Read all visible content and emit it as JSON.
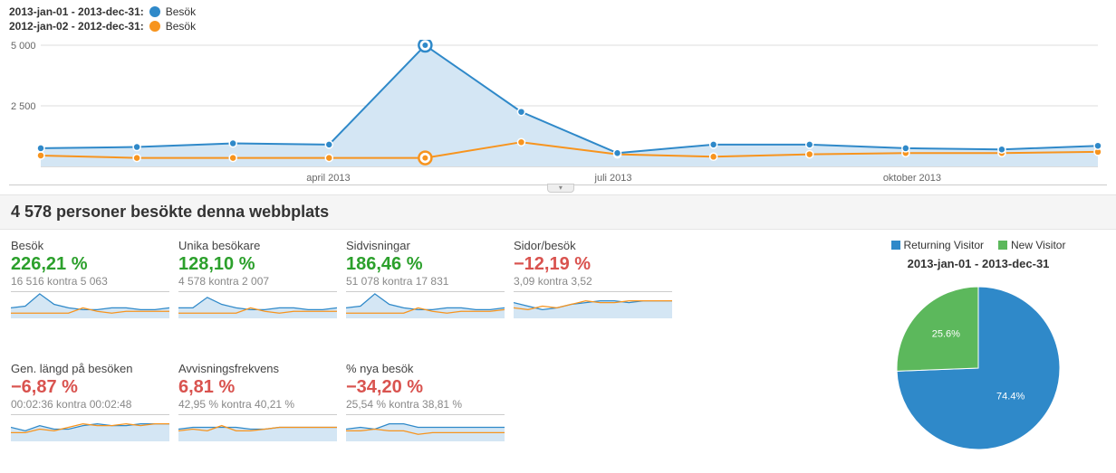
{
  "colors": {
    "series_a": "#2f89c9",
    "series_b": "#f7941e",
    "series_a_fill": "#d4e6f4",
    "series_b_fill": "#fdead1",
    "grid": "#dddddd",
    "axis_text": "#666666",
    "positive": "#2ca02c",
    "negative": "#d9534f",
    "pie_returning": "#2f89c9",
    "pie_new": "#5cb85c"
  },
  "legend": [
    {
      "date_range": "2013-jan-01 - 2013-dec-31:",
      "label": "Besök",
      "color": "#2f89c9"
    },
    {
      "date_range": "2012-jan-02 - 2012-dec-31:",
      "label": "Besök",
      "color": "#f7941e"
    }
  ],
  "main_chart": {
    "type": "line",
    "ylim": [
      0,
      5000
    ],
    "yticks": [
      2500,
      5000
    ],
    "ytick_labels": [
      "2 500",
      "5 000"
    ],
    "xtick_positions": [
      3,
      6,
      9
    ],
    "xtick_labels": [
      "april 2013",
      "juli 2013",
      "oktober 2013"
    ],
    "highlight_index": 4,
    "series_a": [
      750,
      800,
      950,
      900,
      5000,
      2250,
      550,
      900,
      900,
      750,
      700,
      850
    ],
    "series_b": [
      450,
      350,
      350,
      350,
      350,
      1000,
      500,
      400,
      500,
      550,
      550,
      600
    ]
  },
  "summary_title": "4 578 personer besökte denna webbplats",
  "metrics": [
    {
      "label": "Besök",
      "pct": "226,21 %",
      "sign": "pos",
      "sub": "16 516 kontra 5 063",
      "spark_a": [
        6,
        7,
        14,
        8,
        6,
        5,
        5,
        6,
        6,
        5,
        5,
        6
      ],
      "spark_b": [
        3,
        3,
        3,
        3,
        3,
        6,
        4,
        3,
        4,
        4,
        4,
        4
      ]
    },
    {
      "label": "Unika besökare",
      "pct": "128,10 %",
      "sign": "pos",
      "sub": "4 578 kontra 2 007",
      "spark_a": [
        6,
        6,
        12,
        8,
        6,
        5,
        5,
        6,
        6,
        5,
        5,
        6
      ],
      "spark_b": [
        3,
        3,
        3,
        3,
        3,
        6,
        4,
        3,
        4,
        4,
        4,
        4
      ]
    },
    {
      "label": "Sidvisningar",
      "pct": "186,46 %",
      "sign": "pos",
      "sub": "51 078 kontra 17 831",
      "spark_a": [
        6,
        7,
        14,
        8,
        6,
        5,
        5,
        6,
        6,
        5,
        5,
        6
      ],
      "spark_b": [
        3,
        3,
        3,
        3,
        3,
        6,
        4,
        3,
        4,
        4,
        4,
        5
      ]
    },
    {
      "label": "Sidor/besök",
      "pct": "−12,19 %",
      "sign": "neg",
      "sub": "3,09 kontra 3,52",
      "spark_a": [
        9,
        7,
        5,
        6,
        8,
        9,
        10,
        10,
        9,
        10,
        10,
        10
      ],
      "spark_b": [
        6,
        5,
        7,
        6,
        8,
        10,
        9,
        9,
        10,
        10,
        10,
        10
      ]
    },
    {
      "label": "Gen. längd på besöken",
      "pct": "−6,87 %",
      "sign": "neg",
      "sub": "00:02:36 kontra 00:02:48",
      "spark_a": [
        8,
        6,
        9,
        7,
        7,
        9,
        10,
        9,
        9,
        10,
        10,
        10
      ],
      "spark_b": [
        5,
        5,
        7,
        6,
        8,
        10,
        9,
        9,
        10,
        9,
        10,
        10
      ]
    },
    {
      "label": "Avvisningsfrekvens",
      "pct": "6,81 %",
      "sign": "neg",
      "sub": "42,95 % kontra 40,21 %",
      "spark_a": [
        7,
        8,
        8,
        8,
        8,
        7,
        7,
        8,
        8,
        8,
        8,
        8
      ],
      "spark_b": [
        6,
        7,
        6,
        9,
        6,
        6,
        7,
        8,
        8,
        8,
        8,
        8
      ]
    },
    {
      "label": "% nya besök",
      "pct": "−34,20 %",
      "sign": "neg",
      "sub": "25,54 % kontra 38,81 %",
      "spark_a": [
        7,
        8,
        7,
        10,
        10,
        8,
        8,
        8,
        8,
        8,
        8,
        8
      ],
      "spark_b": [
        6,
        6,
        7,
        6,
        6,
        4,
        5,
        5,
        5,
        5,
        5,
        5
      ]
    }
  ],
  "pie": {
    "legend": [
      {
        "label": "Returning Visitor",
        "color": "#2f89c9"
      },
      {
        "label": "New Visitor",
        "color": "#5cb85c"
      }
    ],
    "date_label": "2013-jan-01 - 2013-dec-31",
    "returning_pct": 74.4,
    "new_pct": 25.6,
    "returning_label": "74.4%",
    "new_label": "25.6%"
  }
}
